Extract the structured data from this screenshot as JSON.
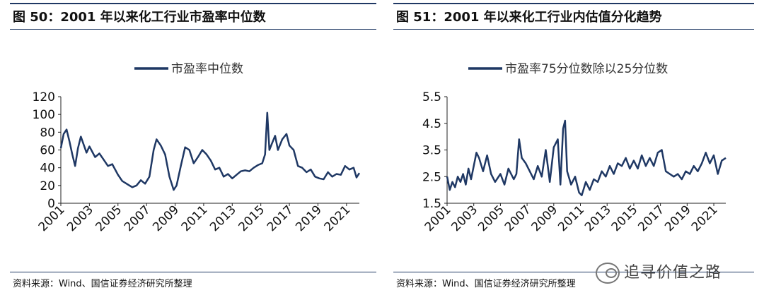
{
  "left": {
    "title": "图 50：2001 年以来化工行业市盈率中位数",
    "source": "资料来源：Wind、国信证券经济研究所整理"
  },
  "right": {
    "title": "图 51：2001 年以来化工行业内估值分化趋势",
    "source": "资料来源：Wind、国信证券经济研究所整理"
  },
  "watermark": {
    "text": "追寻价值之路",
    "icon": "wechat-icon"
  },
  "chart_data": [
    {
      "type": "line",
      "title": "",
      "xlabel": "",
      "ylabel": "",
      "ylim": [
        0,
        120
      ],
      "xlim": [
        2001,
        2021.9
      ],
      "yticks": [
        0,
        20,
        40,
        60,
        80,
        100,
        120
      ],
      "xticks": [
        "2001",
        "2003",
        "2005",
        "2007",
        "2009",
        "2011",
        "2013",
        "2015",
        "2017",
        "2019",
        "2021"
      ],
      "legend_position": "top-center",
      "color": "#1f3864",
      "series": [
        {
          "name": "市盈率中位数",
          "x": [
            2001.0,
            2001.2,
            2001.4,
            2001.6,
            2001.8,
            2002.0,
            2002.2,
            2002.4,
            2002.6,
            2002.8,
            2003.0,
            2003.2,
            2003.4,
            2003.7,
            2004.0,
            2004.3,
            2004.6,
            2005.0,
            2005.3,
            2005.6,
            2006.0,
            2006.3,
            2006.6,
            2006.9,
            2007.2,
            2007.5,
            2007.7,
            2008.0,
            2008.3,
            2008.6,
            2008.9,
            2009.1,
            2009.4,
            2009.7,
            2010.0,
            2010.3,
            2010.6,
            2010.9,
            2011.2,
            2011.5,
            2011.8,
            2012.1,
            2012.4,
            2012.7,
            2013.0,
            2013.3,
            2013.6,
            2013.9,
            2014.2,
            2014.5,
            2014.8,
            2015.1,
            2015.3,
            2015.45,
            2015.6,
            2015.8,
            2016.0,
            2016.2,
            2016.5,
            2016.8,
            2017.0,
            2017.3,
            2017.6,
            2017.9,
            2018.2,
            2018.5,
            2018.8,
            2019.1,
            2019.4,
            2019.7,
            2020.0,
            2020.3,
            2020.6,
            2020.9,
            2021.2,
            2021.5,
            2021.7,
            2021.9
          ],
          "values": [
            62,
            78,
            83,
            70,
            55,
            42,
            62,
            75,
            66,
            57,
            64,
            58,
            52,
            56,
            49,
            42,
            44,
            32,
            25,
            22,
            18,
            20,
            26,
            22,
            30,
            60,
            72,
            65,
            55,
            30,
            15,
            20,
            42,
            63,
            60,
            45,
            52,
            60,
            55,
            48,
            38,
            40,
            30,
            33,
            28,
            32,
            36,
            37,
            36,
            40,
            43,
            45,
            55,
            102,
            60,
            68,
            76,
            60,
            72,
            78,
            65,
            60,
            42,
            40,
            35,
            38,
            30,
            28,
            27,
            35,
            30,
            33,
            32,
            42,
            38,
            40,
            29,
            34
          ]
        }
      ]
    },
    {
      "type": "line",
      "title": "",
      "xlabel": "",
      "ylabel": "",
      "ylim": [
        1.5,
        5.5
      ],
      "xlim": [
        2001,
        2021.9
      ],
      "yticks": [
        1.5,
        2.5,
        3.5,
        4.5,
        5.5
      ],
      "xticks": [
        "2001",
        "2003",
        "2005",
        "2007",
        "2009",
        "2011",
        "2013",
        "2015",
        "2017",
        "2019",
        "2021"
      ],
      "legend_position": "top-center",
      "color": "#1f3864",
      "series": [
        {
          "name": "市盈率75分位数除以25分位数",
          "x": [
            2001.0,
            2001.2,
            2001.4,
            2001.6,
            2001.8,
            2002.0,
            2002.2,
            2002.4,
            2002.6,
            2002.8,
            2003.0,
            2003.2,
            2003.4,
            2003.7,
            2004.0,
            2004.3,
            2004.6,
            2005.0,
            2005.3,
            2005.6,
            2006.0,
            2006.2,
            2006.4,
            2006.6,
            2006.9,
            2007.2,
            2007.5,
            2007.8,
            2008.1,
            2008.4,
            2008.7,
            2009.0,
            2009.3,
            2009.5,
            2009.7,
            2009.85,
            2010.0,
            2010.3,
            2010.6,
            2010.9,
            2011.1,
            2011.4,
            2011.7,
            2012.0,
            2012.3,
            2012.6,
            2012.9,
            2013.2,
            2013.5,
            2013.8,
            2014.1,
            2014.4,
            2014.7,
            2015.0,
            2015.3,
            2015.6,
            2015.9,
            2016.2,
            2016.5,
            2016.8,
            2017.1,
            2017.4,
            2017.7,
            2018.0,
            2018.3,
            2018.6,
            2018.9,
            2019.2,
            2019.5,
            2019.8,
            2020.1,
            2020.4,
            2020.7,
            2021.0,
            2021.3,
            2021.6,
            2021.9
          ],
          "values": [
            2.5,
            2.0,
            2.3,
            2.1,
            2.5,
            2.3,
            2.6,
            2.2,
            2.8,
            2.4,
            2.9,
            3.4,
            3.2,
            2.7,
            3.3,
            2.6,
            2.3,
            2.6,
            2.2,
            2.8,
            2.4,
            2.6,
            3.9,
            3.2,
            3.0,
            2.7,
            2.4,
            2.9,
            2.5,
            3.5,
            2.3,
            3.6,
            3.9,
            2.2,
            4.3,
            4.6,
            2.7,
            2.2,
            2.5,
            1.9,
            1.8,
            2.3,
            2.0,
            2.4,
            2.3,
            2.7,
            2.5,
            2.9,
            2.6,
            3.0,
            2.9,
            3.2,
            2.8,
            3.1,
            2.8,
            3.3,
            2.9,
            3.2,
            2.9,
            3.4,
            3.5,
            2.7,
            2.6,
            2.5,
            2.6,
            2.4,
            2.7,
            2.6,
            2.9,
            2.7,
            3.0,
            3.4,
            3.0,
            3.3,
            2.6,
            3.1,
            3.2
          ]
        }
      ]
    }
  ]
}
